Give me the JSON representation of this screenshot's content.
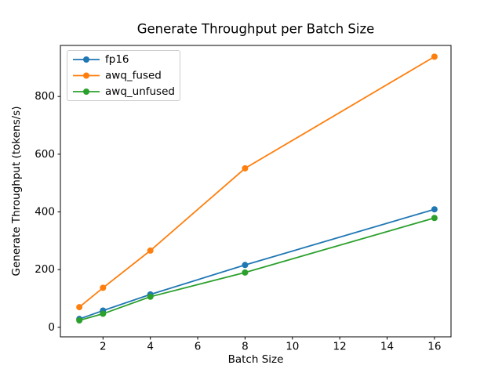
{
  "chart_data": {
    "type": "line",
    "title": "Generate Throughput per Batch Size",
    "xlabel": "Batch Size",
    "ylabel": "Generate Throughput (tokens/s)",
    "x": [
      1,
      2,
      4,
      8,
      16
    ],
    "series": [
      {
        "name": "fp16",
        "color": "#1f77b4",
        "values": [
          29,
          58,
          114,
          216,
          409
        ]
      },
      {
        "name": "awq_fused",
        "color": "#ff7f0e",
        "values": [
          70,
          137,
          266,
          551,
          938
        ]
      },
      {
        "name": "awq_unfused",
        "color": "#2ca02c",
        "values": [
          24,
          47,
          106,
          190,
          379
        ]
      }
    ],
    "xticks": [
      2,
      4,
      6,
      8,
      10,
      12,
      14,
      16
    ],
    "yticks": [
      0,
      200,
      400,
      600,
      800
    ],
    "xlim": [
      0.2,
      16.7
    ],
    "ylim": [
      -33,
      977
    ],
    "grid": false,
    "marker": "o",
    "legend": {
      "position": "upper left",
      "edge_color": "#cccccc",
      "face_color": "#ffffff",
      "face_alpha": 0.8
    },
    "axis_color": "#000000",
    "text_color": "#000000"
  }
}
